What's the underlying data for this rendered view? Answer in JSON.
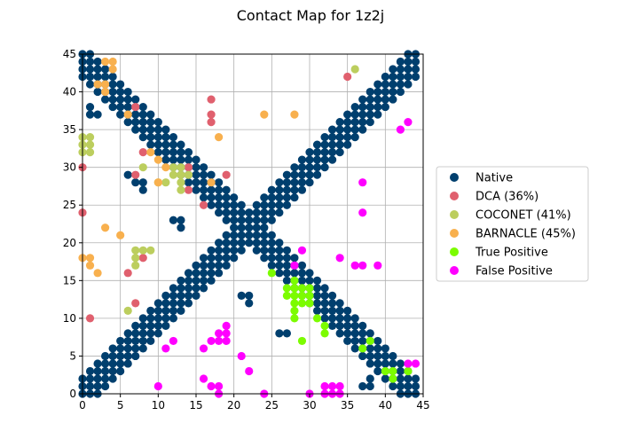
{
  "chart_data": {
    "type": "scatter",
    "title": "Contact Map for 1z2j",
    "xlabel": "",
    "ylabel": "",
    "xlim": [
      0,
      45
    ],
    "ylim": [
      0,
      45
    ],
    "xticks": [
      0,
      5,
      10,
      15,
      20,
      25,
      30,
      35,
      40,
      45
    ],
    "yticks": [
      0,
      5,
      10,
      15,
      20,
      25,
      30,
      35,
      40,
      45
    ],
    "grid": true,
    "legend_position": "right",
    "native_bands": [
      {
        "kind": "diagonal",
        "from": 0,
        "to": 44,
        "halfwidth": 2
      },
      {
        "kind": "anti_diagonal",
        "sum": 44,
        "from": 0,
        "to": 44,
        "halfwidth": 2
      }
    ],
    "series": [
      {
        "name": "Native",
        "color": "#003f6e",
        "points_extra": [
          [
            1,
            38
          ],
          [
            1,
            37
          ],
          [
            2,
            37
          ],
          [
            3,
            39
          ],
          [
            6,
            37
          ],
          [
            6,
            29
          ],
          [
            7,
            28
          ],
          [
            8,
            28
          ],
          [
            8,
            27
          ],
          [
            12,
            23
          ],
          [
            13,
            23
          ],
          [
            13,
            22
          ],
          [
            21,
            13
          ],
          [
            22,
            13
          ],
          [
            22,
            12
          ],
          [
            26,
            8
          ],
          [
            27,
            8
          ],
          [
            37,
            1
          ],
          [
            38,
            1
          ],
          [
            38,
            2
          ]
        ]
      },
      {
        "name": "DCA (36%)",
        "color": "#e0606e",
        "points": [
          [
            0,
            30
          ],
          [
            0,
            24
          ],
          [
            1,
            10
          ],
          [
            6,
            16
          ],
          [
            7,
            12
          ],
          [
            7,
            29
          ],
          [
            7,
            38
          ],
          [
            8,
            32
          ],
          [
            8,
            18
          ],
          [
            14,
            27
          ],
          [
            14,
            30
          ],
          [
            16,
            25
          ],
          [
            17,
            36
          ],
          [
            17,
            37
          ],
          [
            17,
            39
          ],
          [
            19,
            29
          ],
          [
            35,
            42
          ]
        ]
      },
      {
        "name": "COCONET (41%)",
        "color": "#bcce5e",
        "points": [
          [
            0,
            32
          ],
          [
            0,
            33
          ],
          [
            0,
            34
          ],
          [
            1,
            32
          ],
          [
            1,
            33
          ],
          [
            1,
            34
          ],
          [
            6,
            11
          ],
          [
            7,
            17
          ],
          [
            7,
            18
          ],
          [
            7,
            19
          ],
          [
            8,
            19
          ],
          [
            8,
            30
          ],
          [
            9,
            19
          ],
          [
            10,
            28
          ],
          [
            11,
            28
          ],
          [
            12,
            29
          ],
          [
            12,
            30
          ],
          [
            13,
            27
          ],
          [
            13,
            28
          ],
          [
            13,
            29
          ],
          [
            13,
            30
          ],
          [
            14,
            29
          ],
          [
            36,
            43
          ]
        ]
      },
      {
        "name": "BARNACLE (45%)",
        "color": "#f8b04e",
        "points": [
          [
            0,
            18
          ],
          [
            1,
            17
          ],
          [
            1,
            18
          ],
          [
            2,
            16
          ],
          [
            2,
            41
          ],
          [
            3,
            22
          ],
          [
            3,
            40
          ],
          [
            3,
            41
          ],
          [
            3,
            44
          ],
          [
            4,
            44
          ],
          [
            4,
            43
          ],
          [
            5,
            21
          ],
          [
            6,
            37
          ],
          [
            9,
            32
          ],
          [
            10,
            28
          ],
          [
            10,
            31
          ],
          [
            11,
            30
          ],
          [
            17,
            28
          ],
          [
            18,
            34
          ],
          [
            24,
            37
          ],
          [
            28,
            37
          ]
        ]
      },
      {
        "name": "True Positive",
        "color": "#7cfc00",
        "points": [
          [
            25,
            16
          ],
          [
            27,
            13
          ],
          [
            27,
            14
          ],
          [
            28,
            10
          ],
          [
            28,
            11
          ],
          [
            28,
            12
          ],
          [
            28,
            13
          ],
          [
            28,
            14
          ],
          [
            28,
            15
          ],
          [
            29,
            7
          ],
          [
            29,
            12
          ],
          [
            29,
            13
          ],
          [
            29,
            14
          ],
          [
            30,
            12
          ],
          [
            30,
            13
          ],
          [
            30,
            14
          ],
          [
            31,
            10
          ],
          [
            32,
            8
          ],
          [
            32,
            9
          ],
          [
            37,
            6
          ],
          [
            38,
            7
          ],
          [
            40,
            3
          ],
          [
            41,
            2
          ],
          [
            41,
            3
          ],
          [
            43,
            3
          ]
        ]
      },
      {
        "name": "False Positive",
        "color": "#ff00ff",
        "points": [
          [
            10,
            1
          ],
          [
            11,
            6
          ],
          [
            12,
            7
          ],
          [
            16,
            2
          ],
          [
            16,
            6
          ],
          [
            17,
            1
          ],
          [
            17,
            7
          ],
          [
            18,
            0
          ],
          [
            18,
            1
          ],
          [
            18,
            7
          ],
          [
            18,
            8
          ],
          [
            19,
            7
          ],
          [
            19,
            8
          ],
          [
            19,
            9
          ],
          [
            21,
            5
          ],
          [
            22,
            3
          ],
          [
            24,
            0
          ],
          [
            28,
            17
          ],
          [
            29,
            19
          ],
          [
            30,
            0
          ],
          [
            32,
            0
          ],
          [
            32,
            1
          ],
          [
            33,
            0
          ],
          [
            33,
            1
          ],
          [
            34,
            0
          ],
          [
            34,
            1
          ],
          [
            34,
            18
          ],
          [
            36,
            17
          ],
          [
            37,
            17
          ],
          [
            37,
            24
          ],
          [
            37,
            28
          ],
          [
            39,
            17
          ],
          [
            42,
            35
          ],
          [
            43,
            36
          ],
          [
            43,
            4
          ],
          [
            44,
            4
          ]
        ]
      }
    ]
  }
}
